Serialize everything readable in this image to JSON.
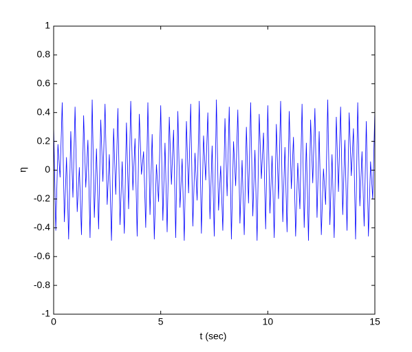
{
  "chart_data": {
    "type": "line",
    "x_label": "t (sec)",
    "y_label": "η",
    "x": [
      0,
      0.1,
      0.2,
      0.3,
      0.4,
      0.5,
      0.6,
      0.7,
      0.8,
      0.9,
      1,
      1.1,
      1.2,
      1.3,
      1.4,
      1.5,
      1.6,
      1.7,
      1.8,
      1.9,
      2,
      2.1,
      2.2,
      2.3,
      2.4,
      2.5,
      2.6,
      2.7,
      2.8,
      2.9,
      3,
      3.1,
      3.2,
      3.3,
      3.4,
      3.5,
      3.6,
      3.7,
      3.8,
      3.9,
      4,
      4.1,
      4.2,
      4.3,
      4.4,
      4.5,
      4.6,
      4.7,
      4.8,
      4.9,
      5,
      5.1,
      5.2,
      5.3,
      5.4,
      5.5,
      5.6,
      5.7,
      5.8,
      5.9,
      6,
      6.1,
      6.2,
      6.3,
      6.4,
      6.5,
      6.6,
      6.7,
      6.8,
      6.9,
      7,
      7.1,
      7.2,
      7.3,
      7.4,
      7.5,
      7.6,
      7.7,
      7.8,
      7.9,
      8,
      8.1,
      8.2,
      8.3,
      8.4,
      8.5,
      8.6,
      8.7,
      8.8,
      8.9,
      9,
      9.1,
      9.2,
      9.3,
      9.4,
      9.5,
      9.6,
      9.7,
      9.8,
      9.9,
      10,
      10.1,
      10.2,
      10.3,
      10.4,
      10.5,
      10.6,
      10.7,
      10.8,
      10.9,
      11,
      11.1,
      11.2,
      11.3,
      11.4,
      11.5,
      11.6,
      11.7,
      11.8,
      11.9,
      12,
      12.1,
      12.2,
      12.3,
      12.4,
      12.5,
      12.6,
      12.7,
      12.8,
      12.9,
      13,
      13.1,
      13.2,
      13.3,
      13.4,
      13.5,
      13.6,
      13.7,
      13.8,
      13.9,
      14,
      14.1,
      14.2,
      14.3,
      14.4,
      14.5,
      14.6,
      14.7,
      14.8,
      14.9,
      15
    ],
    "series": [
      {
        "color": "#0000ff",
        "values": [
          0.31,
          -0.42,
          0.18,
          -0.05,
          0.47,
          -0.36,
          0.09,
          -0.48,
          0.27,
          -0.19,
          0.44,
          -0.29,
          0.02,
          -0.45,
          0.38,
          -0.12,
          0.21,
          -0.47,
          0.49,
          -0.33,
          0.15,
          -0.41,
          0.35,
          -0.08,
          0.46,
          -0.24,
          0.11,
          -0.49,
          0.29,
          -0.17,
          0.43,
          -0.38,
          0.06,
          -0.44,
          0.33,
          -0.27,
          0.48,
          -0.14,
          0.22,
          -0.46,
          0.39,
          -0.03,
          0.13,
          -0.4,
          0.47,
          -0.31,
          0.25,
          -0.48,
          0.04,
          -0.22,
          0.45,
          -0.35,
          0.19,
          -0.43,
          0.37,
          -0.1,
          0.28,
          -0.47,
          0.41,
          -0.26,
          0.08,
          -0.49,
          0.34,
          -0.16,
          0.46,
          -0.39,
          0.12,
          -0.21,
          0.48,
          -0.44,
          0.24,
          -0.07,
          0.4,
          -0.34,
          0.17,
          -0.46,
          0.49,
          -0.28,
          0.03,
          -0.42,
          0.36,
          -0.18,
          0.44,
          -0.48,
          0.2,
          -0.11,
          0.42,
          -0.37,
          0.07,
          -0.45,
          0.3,
          -0.23,
          0.47,
          -0.32,
          0.14,
          -0.49,
          0.39,
          -0.06,
          0.26,
          -0.41,
          0.45,
          -0.3,
          0.1,
          -0.47,
          0.32,
          -0.2,
          0.48,
          -0.36,
          0.16,
          -0.43,
          0.41,
          -0.13,
          0.23,
          -0.46,
          0.05,
          -0.27,
          0.46,
          -0.4,
          0.19,
          -0.49,
          0.35,
          -0.09,
          0.43,
          -0.33,
          0.27,
          -0.45,
          0.01,
          -0.24,
          0.49,
          -0.38,
          0.11,
          -0.47,
          0.37,
          -0.15,
          0.44,
          -0.31,
          0.21,
          -0.42,
          0.4,
          -0.04,
          0.29,
          -0.48,
          0.47,
          -0.25,
          0.13,
          -0.39,
          0.34,
          -0.46,
          0.06,
          -0.2,
          0.42
        ]
      }
    ],
    "xlim": [
      0,
      15
    ],
    "xticks": [
      0,
      5,
      10,
      15
    ],
    "ylim": [
      -1,
      1
    ],
    "yticks": [
      -1,
      -0.8,
      -0.6,
      -0.4,
      -0.2,
      0,
      0.2,
      0.4,
      0.6,
      0.8,
      1
    ]
  }
}
